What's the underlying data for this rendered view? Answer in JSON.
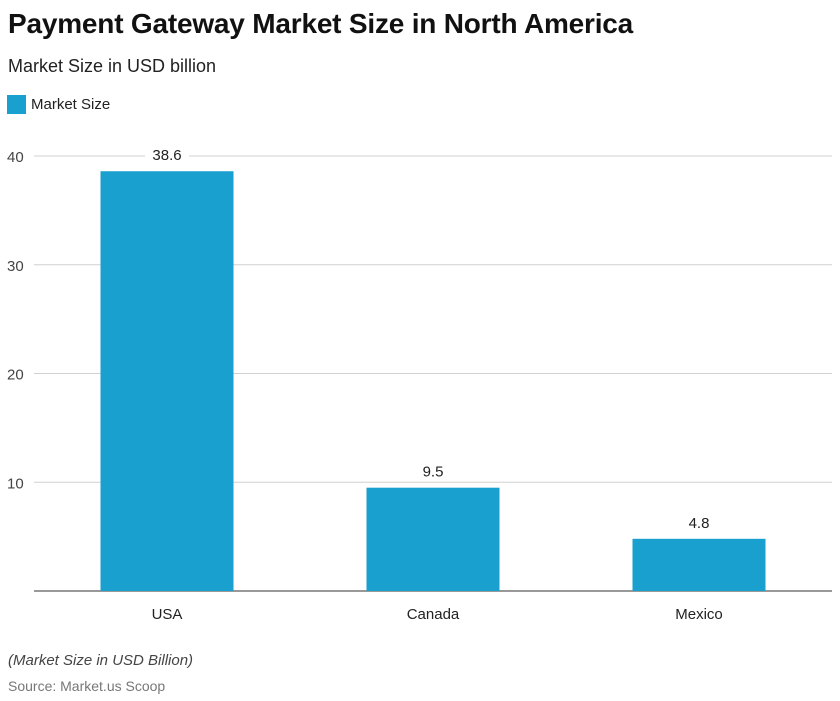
{
  "chart_data": {
    "type": "bar",
    "title": "Payment Gateway Market Size in North America",
    "subtitle": "Market Size in USD billion",
    "categories": [
      "USA",
      "Canada",
      "Mexico"
    ],
    "series": [
      {
        "name": "Market Size",
        "values": [
          38.6,
          9.5,
          4.8
        ],
        "color": "#1aa0cf"
      }
    ],
    "data_labels": [
      "38.6",
      "9.5",
      "4.8"
    ],
    "yticks": [
      "10",
      "20",
      "30",
      "40"
    ],
    "ylim": [
      0,
      40
    ],
    "grid": true,
    "legend_position": "top-left",
    "xlabel": "",
    "ylabel": ""
  },
  "footer": {
    "note": "(Market Size in USD Billion)",
    "source": "Source: Market.us Scoop"
  }
}
